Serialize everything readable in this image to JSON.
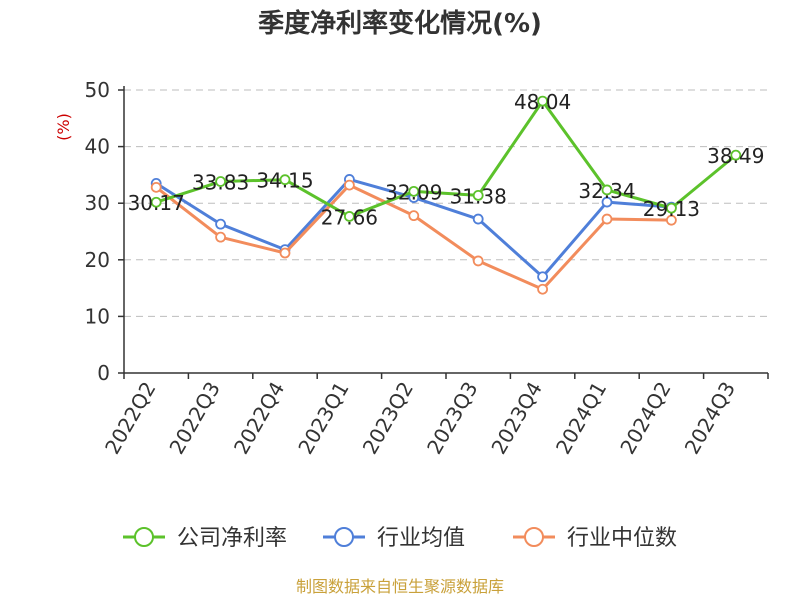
{
  "chart_data": {
    "type": "line",
    "title": "季度净利率变化情况(%)",
    "ylabel": "(%)",
    "ylim": [
      0,
      50
    ],
    "yticks": [
      0,
      10,
      20,
      30,
      40,
      50
    ],
    "grid": true,
    "legend_position": "bottom",
    "categories": [
      "2022Q2",
      "2022Q3",
      "2022Q4",
      "2023Q1",
      "2023Q2",
      "2023Q3",
      "2023Q4",
      "2024Q1",
      "2024Q2",
      "2024Q3"
    ],
    "series": [
      {
        "name": "公司净利率",
        "color": "#5cc22b",
        "values": [
          30.17,
          33.83,
          34.15,
          27.66,
          32.09,
          31.38,
          48.04,
          32.34,
          29.13,
          38.49
        ],
        "labels": [
          "30.17",
          "33.83",
          "34.15",
          "27.66",
          "32.09",
          "31.38",
          "48.04",
          "32.34",
          "29.13",
          "38.49"
        ]
      },
      {
        "name": "行业均值",
        "color": "#4f7fd9",
        "values": [
          33.5,
          26.3,
          21.8,
          34.2,
          31.0,
          27.2,
          17.0,
          30.2,
          29.3,
          null
        ]
      },
      {
        "name": "行业中位数",
        "color": "#f28c5c",
        "values": [
          32.8,
          24.0,
          21.2,
          33.2,
          27.8,
          19.8,
          14.8,
          27.2,
          27.0,
          null
        ]
      }
    ],
    "source": "制图数据来自恒生聚源数据库"
  }
}
